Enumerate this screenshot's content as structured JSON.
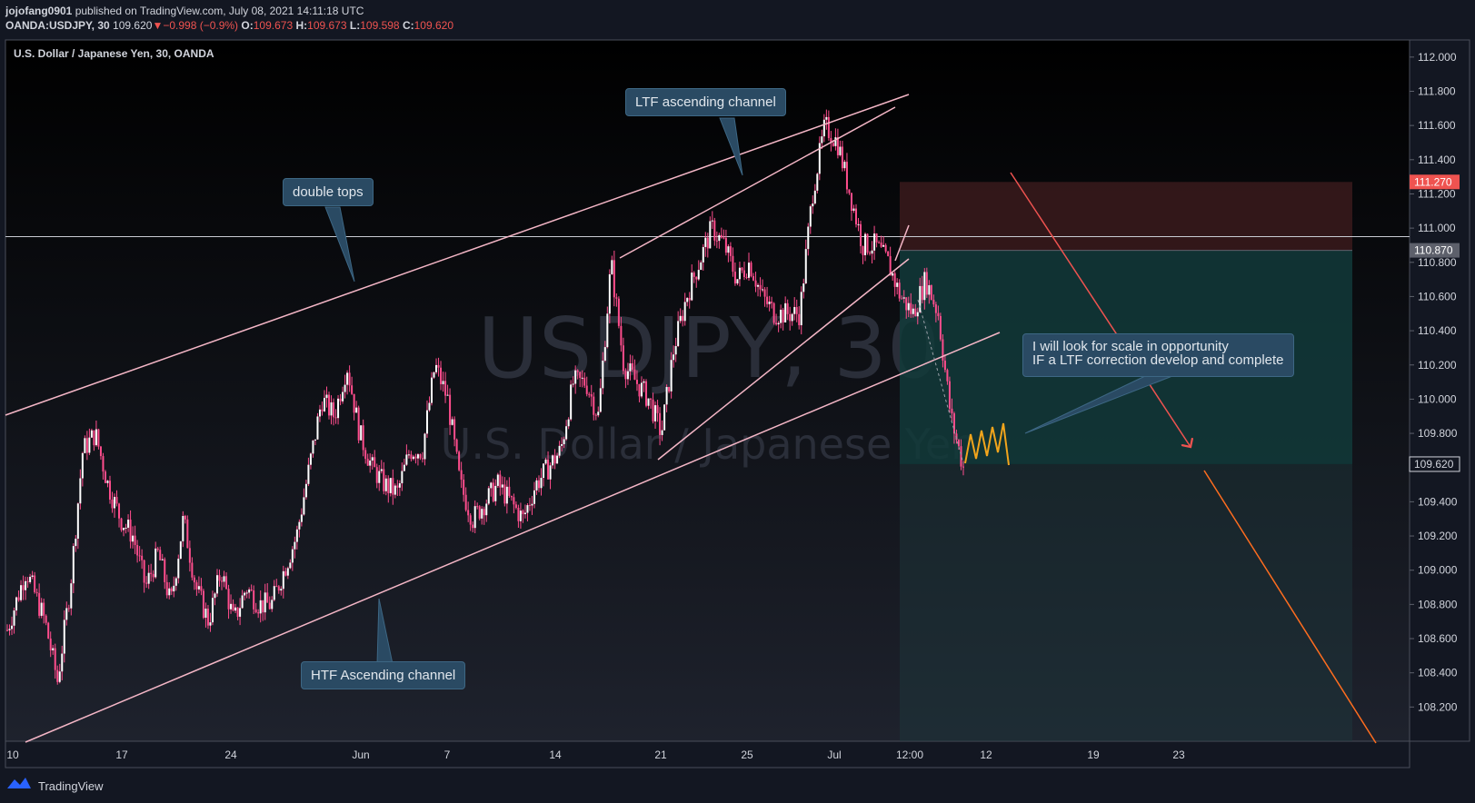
{
  "header": {
    "publisher": "jojofang0901",
    "published_text": "published on TradingView.com, July 08, 2021 14:11:18 UTC",
    "symbol_line": "OANDA:USDJPY, 30",
    "last": "109.620",
    "change_arrow": "▼",
    "change": "−0.998 (−0.9%)",
    "o_label": "O:",
    "o": "109.673",
    "h_label": "H:",
    "h": "109.673",
    "l_label": "L:",
    "l": "109.598",
    "c_label": "C:",
    "c": "109.620"
  },
  "symbol_title": "U.S. Dollar / Japanese Yen, 30, OANDA",
  "watermark": {
    "line1": "USDJPY, 30",
    "line2": "U.S. Dollar / Japanese Yen"
  },
  "annotations": {
    "ltf_channel": "LTF ascending channel",
    "double_tops": "double tops",
    "htf_channel": "HTF Ascending channel",
    "scale_note": "I will look for scale in opportunity\nIF a LTF correction develop and complete"
  },
  "footer": {
    "brand": "TradingView"
  },
  "colors": {
    "background": "#131722",
    "candle": "#ff4d8d",
    "trendline": "#f4b6c6",
    "stop_zone": "#3a1a1c",
    "target_zone": "#123a3a",
    "red_arrow": "#ef5350",
    "orange_line": "#ff6d1f",
    "zigzag": "#f2a51c",
    "price_red": "#ef5350",
    "price_gray": "#5d606b"
  },
  "chart_data": {
    "type": "candlestick",
    "symbol": "USDJPY",
    "timeframe": "30",
    "y_axis": {
      "range": [
        108.0,
        112.1
      ],
      "ticks": [
        "112.000",
        "111.800",
        "111.600",
        "111.400",
        "111.200",
        "111.000",
        "110.800",
        "110.600",
        "110.400",
        "110.200",
        "110.000",
        "109.800",
        "109.600",
        "109.400",
        "109.200",
        "109.000",
        "108.800",
        "108.600",
        "108.400",
        "108.200"
      ]
    },
    "x_axis": {
      "ticks": [
        "10",
        "17",
        "24",
        "Jun",
        "7",
        "14",
        "21",
        "25",
        "Jul",
        "12:00",
        "12",
        "19",
        "23"
      ]
    },
    "price_labels": [
      {
        "value": 111.27,
        "text": "111.270",
        "style": "red"
      },
      {
        "value": 110.87,
        "text": "110.870",
        "style": "gray"
      },
      {
        "value": 109.62,
        "text": "109.620",
        "style": "light"
      }
    ],
    "horizontal_line": 110.95,
    "position": {
      "stop": 111.27,
      "entry": 110.87,
      "target_zone_low": 109.62
    },
    "price_path": [
      [
        0,
        108.65
      ],
      [
        3,
        109.0
      ],
      [
        6,
        108.7
      ],
      [
        8,
        108.35
      ],
      [
        10,
        108.9
      ],
      [
        12,
        109.7
      ],
      [
        14,
        109.8
      ],
      [
        16,
        109.5
      ],
      [
        18,
        109.3
      ],
      [
        20,
        109.2
      ],
      [
        22,
        108.9
      ],
      [
        24,
        109.1
      ],
      [
        26,
        108.8
      ],
      [
        28,
        109.3
      ],
      [
        30,
        108.9
      ],
      [
        32,
        108.7
      ],
      [
        34,
        109.0
      ],
      [
        36,
        108.7
      ],
      [
        38,
        108.9
      ],
      [
        40,
        108.8
      ],
      [
        42,
        108.8
      ],
      [
        44,
        109.0
      ],
      [
        46,
        109.2
      ],
      [
        48,
        109.6
      ],
      [
        50,
        110.0
      ],
      [
        52,
        109.9
      ],
      [
        54,
        110.2
      ],
      [
        56,
        109.8
      ],
      [
        58,
        109.6
      ],
      [
        60,
        109.5
      ],
      [
        62,
        109.45
      ],
      [
        64,
        109.7
      ],
      [
        66,
        109.7
      ],
      [
        68,
        110.2
      ],
      [
        70,
        110.0
      ],
      [
        72,
        109.5
      ],
      [
        74,
        109.3
      ],
      [
        76,
        109.4
      ],
      [
        78,
        109.5
      ],
      [
        80,
        109.4
      ],
      [
        82,
        109.3
      ],
      [
        84,
        109.5
      ],
      [
        86,
        109.6
      ],
      [
        88,
        109.7
      ],
      [
        90,
        110.1
      ],
      [
        92,
        110.1
      ],
      [
        94,
        109.9
      ],
      [
        96,
        110.8
      ],
      [
        98,
        110.2
      ],
      [
        100,
        110.1
      ],
      [
        102,
        110.0
      ],
      [
        104,
        109.8
      ],
      [
        106,
        110.3
      ],
      [
        108,
        110.6
      ],
      [
        110,
        110.8
      ],
      [
        112,
        111.0
      ],
      [
        114,
        110.9
      ],
      [
        116,
        110.7
      ],
      [
        118,
        110.8
      ],
      [
        120,
        110.6
      ],
      [
        122,
        110.5
      ],
      [
        124,
        110.5
      ],
      [
        126,
        110.5
      ],
      [
        128,
        111.2
      ],
      [
        130,
        111.6
      ],
      [
        132,
        111.5
      ],
      [
        134,
        111.2
      ],
      [
        136,
        110.9
      ],
      [
        138,
        110.9
      ],
      [
        140,
        110.8
      ],
      [
        142,
        110.6
      ],
      [
        144,
        110.5
      ],
      [
        146,
        110.7
      ],
      [
        148,
        110.5
      ],
      [
        150,
        109.9
      ],
      [
        152,
        109.6
      ]
    ],
    "x_path_range": [
      0,
      152
    ]
  }
}
